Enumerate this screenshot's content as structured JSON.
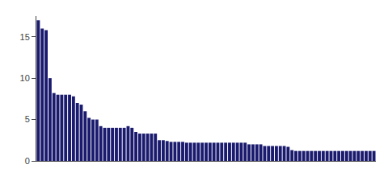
{
  "chart_data": {
    "type": "bar",
    "categories": [
      null,
      null,
      null,
      null,
      null,
      null,
      null,
      null,
      null,
      null,
      null,
      null,
      null,
      null,
      null,
      null,
      null,
      null,
      null,
      null,
      null,
      null,
      null,
      null,
      null,
      null,
      null,
      null,
      null,
      null,
      null,
      null,
      null,
      null,
      null,
      null,
      null,
      null,
      null,
      null,
      null,
      null,
      null,
      null,
      null,
      null,
      null,
      null,
      null,
      null,
      null,
      null,
      null,
      null,
      null,
      null,
      null,
      null,
      null,
      null,
      null,
      null,
      null,
      null,
      null,
      null,
      null,
      null,
      null,
      null,
      null,
      null,
      null,
      null,
      null,
      null,
      null,
      null,
      null,
      null,
      null,
      null,
      null,
      null,
      null,
      null,
      null
    ],
    "values": [
      17.0,
      16.0,
      15.8,
      10.0,
      8.2,
      8.0,
      8.0,
      8.0,
      8.0,
      7.8,
      7.0,
      6.8,
      6.0,
      5.2,
      5.0,
      5.0,
      4.2,
      4.0,
      4.0,
      4.0,
      4.0,
      4.0,
      4.0,
      4.2,
      4.0,
      3.5,
      3.3,
      3.3,
      3.3,
      3.3,
      3.3,
      2.5,
      2.5,
      2.4,
      2.3,
      2.3,
      2.3,
      2.3,
      2.2,
      2.2,
      2.2,
      2.2,
      2.2,
      2.2,
      2.2,
      2.2,
      2.2,
      2.2,
      2.2,
      2.2,
      2.2,
      2.2,
      2.2,
      2.2,
      2.0,
      2.0,
      2.0,
      2.0,
      1.8,
      1.8,
      1.8,
      1.8,
      1.8,
      1.8,
      1.7,
      1.3,
      1.2,
      1.2,
      1.2,
      1.2,
      1.2,
      1.2,
      1.2,
      1.2,
      1.2,
      1.2,
      1.2,
      1.2,
      1.2,
      1.2,
      1.2,
      1.2,
      1.2,
      1.2,
      1.2,
      1.2,
      1.2
    ],
    "color": "#1a1a6e",
    "ylim": [
      0,
      17.5
    ],
    "yticks": [
      0,
      5,
      10,
      15
    ],
    "grid": false,
    "tick_labels": "y"
  }
}
